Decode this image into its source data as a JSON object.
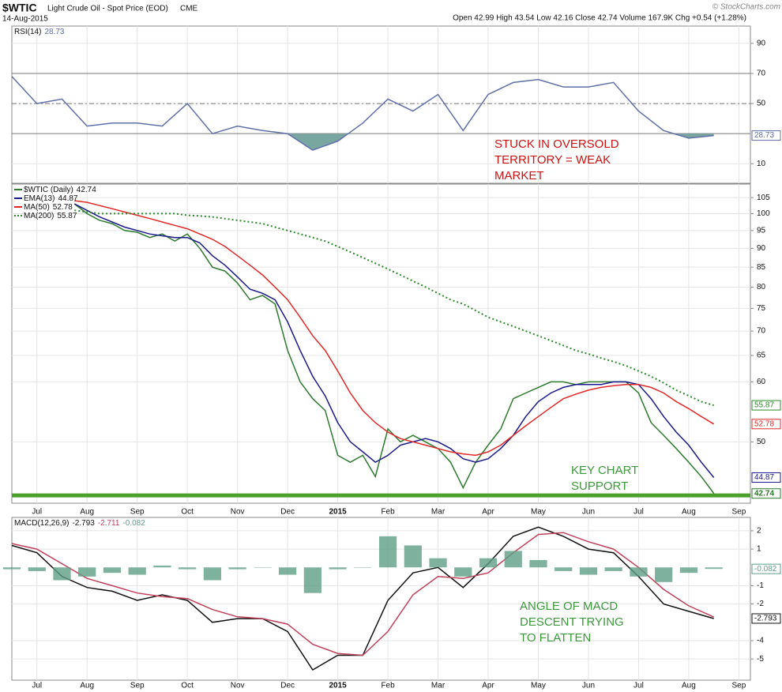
{
  "header": {
    "symbol": "$WTIC",
    "name": "Light Crude Oil - Spot Price (EOD)",
    "exchange": "CME",
    "date": "14-Aug-2015",
    "quote": "Open 42.99  High 43.54  Low 42.16  Close 42.74  Volume 167.9K  Chg +0.54 (+1.28%)",
    "source": "© StockCharts.com"
  },
  "chart_data": [
    {
      "type": "line",
      "label": "RSI(14)",
      "x": [
        -0.5,
        0,
        0.5,
        1,
        1.5,
        2,
        2.5,
        3,
        3.5,
        4,
        4.5,
        5,
        5.5,
        6,
        6.5,
        7,
        7.5,
        8,
        8.5,
        9,
        9.5,
        10,
        10.5,
        11,
        11.5,
        12,
        12.5,
        13,
        13.5
      ],
      "series": [
        {
          "color": "#5f6fa8",
          "badge": true,
          "fill_below": 30,
          "fill_color": "#7aa6a2",
          "values": [
            68,
            50,
            53,
            35,
            37,
            37,
            35,
            50,
            30,
            35,
            32,
            30,
            19,
            25,
            37,
            53,
            45,
            56,
            32,
            56,
            64,
            66,
            61,
            61,
            64,
            45,
            32,
            27,
            28.73
          ]
        }
      ],
      "ref_lines": [
        {
          "value": 70,
          "dash": false
        },
        {
          "value": 50,
          "dash": true
        },
        {
          "value": 30,
          "dash": false
        }
      ],
      "xlim": [
        -0.5,
        14.23
      ],
      "ylim": [
        -3,
        101.5
      ],
      "yticks": [
        10,
        50,
        70,
        90
      ],
      "annotation": [
        "STUCK IN OVERSOLD",
        "TERRITORY = WEAK",
        "MARKET"
      ],
      "annotation_color": "#cc1111"
    },
    {
      "type": "line",
      "log": true,
      "x": [
        0.75,
        1,
        1.25,
        1.5,
        1.75,
        2,
        2.25,
        2.5,
        2.75,
        3,
        3.25,
        3.5,
        3.75,
        4,
        4.25,
        4.5,
        4.75,
        5,
        5.25,
        5.5,
        5.75,
        6,
        6.25,
        6.5,
        6.75,
        7,
        7.25,
        7.5,
        7.75,
        8,
        8.25,
        8.5,
        8.75,
        9,
        9.25,
        9.5,
        9.75,
        10,
        10.25,
        10.5,
        10.75,
        11,
        11.25,
        11.5,
        11.75,
        12,
        12.25,
        12.5,
        12.75,
        13,
        13.25,
        13.5
      ],
      "series": [
        {
          "name": "$WTIC (Daily)",
          "color": "#2d7a2d",
          "badge": true,
          "values": [
            103,
            100,
            98,
            97,
            95,
            94.5,
            93,
            94,
            92,
            94,
            90,
            85,
            84,
            81,
            77,
            78,
            76,
            66,
            60,
            57,
            55,
            48,
            47,
            48,
            45,
            52,
            50,
            51,
            50,
            49,
            47,
            43.5,
            47,
            49.5,
            52,
            57,
            58,
            59,
            60,
            60,
            59.5,
            60,
            60,
            60,
            60,
            58,
            53,
            51,
            49,
            47,
            45,
            42.74
          ]
        },
        {
          "name": "EMA(13)",
          "color": "#1a1a8c",
          "badge": true,
          "values": [
            103,
            101,
            99,
            97.5,
            96,
            95,
            94,
            93.5,
            93,
            93,
            91.5,
            88,
            85.5,
            82.5,
            79.5,
            78.5,
            77,
            72,
            66,
            61,
            57.5,
            53,
            50,
            48.5,
            47,
            48,
            49.5,
            50,
            50.5,
            50,
            49,
            47.5,
            47,
            47.5,
            49,
            51,
            54,
            56.5,
            58,
            59,
            59.5,
            59.5,
            59.5,
            60,
            60,
            59.5,
            57,
            54,
            51.5,
            49.5,
            47,
            44.87
          ]
        },
        {
          "name": "MA(50)",
          "color": "#e02828",
          "badge": true,
          "values": [
            104,
            103.5,
            102.5,
            101.5,
            100.5,
            99.5,
            98.5,
            97.5,
            96.5,
            95.5,
            94,
            92.5,
            90.5,
            88,
            85.5,
            83,
            80,
            77,
            73,
            69,
            66,
            62,
            58,
            55,
            53,
            51.5,
            50.5,
            50,
            49.5,
            49,
            48.5,
            48.2,
            48,
            48.5,
            49.5,
            51,
            52.5,
            54,
            55.5,
            57,
            57.8,
            58.5,
            59,
            59.3,
            59.5,
            59.5,
            59,
            58,
            56.5,
            55.3,
            54,
            52.78
          ]
        },
        {
          "name": "MA(200)",
          "color": "#2a8a2a",
          "badge": true,
          "dotted": true,
          "values": [
            101,
            100.5,
            100,
            100,
            100,
            100,
            100,
            100,
            100,
            99.5,
            99.3,
            99,
            98.5,
            98,
            97.5,
            97,
            96,
            95,
            94,
            93,
            92,
            90.5,
            89,
            87.5,
            86,
            84.5,
            83,
            81.5,
            80,
            78.5,
            77,
            76,
            74.5,
            73,
            72,
            71,
            70,
            69,
            68,
            67,
            66,
            65.3,
            64.5,
            63.8,
            63,
            62,
            61,
            59.8,
            58.5,
            57.5,
            56.5,
            55.87
          ]
        }
      ],
      "hlines": [
        {
          "value": 42.5,
          "color": "#4aa02a"
        }
      ],
      "xlim": [
        -0.5,
        14.23
      ],
      "ylim": [
        41.5,
        109.4
      ],
      "yticks": [
        50,
        60,
        65,
        70,
        75,
        80,
        85,
        90,
        95,
        100,
        105
      ],
      "xticks": [
        {
          "value": 0,
          "label": "Jul"
        },
        {
          "value": 1,
          "label": "Aug"
        },
        {
          "value": 2,
          "label": "Sep"
        },
        {
          "value": 3,
          "label": "Oct"
        },
        {
          "value": 4,
          "label": "Nov"
        },
        {
          "value": 5,
          "label": "Dec"
        },
        {
          "value": 6,
          "label": "2015"
        },
        {
          "value": 7,
          "label": "Feb"
        },
        {
          "value": 8,
          "label": "Mar"
        },
        {
          "value": 9,
          "label": "Apr"
        },
        {
          "value": 10,
          "label": "May"
        },
        {
          "value": 11,
          "label": "Jun"
        },
        {
          "value": 12,
          "label": "Jul"
        },
        {
          "value": 13,
          "label": "Aug"
        },
        {
          "value": 14,
          "label": "Sep"
        }
      ],
      "annotation": [
        "KEY CHART",
        "SUPPORT"
      ],
      "annotation_color": "#3a9a3a"
    },
    {
      "type": "line",
      "label": "MACD(12,26,9)",
      "x": [
        -0.5,
        0,
        0.5,
        1,
        1.5,
        2,
        2.5,
        3,
        3.5,
        4,
        4.5,
        5,
        5.5,
        6,
        6.5,
        7,
        7.5,
        8,
        8.5,
        9,
        9.5,
        10,
        10.5,
        11,
        11.5,
        12,
        12.5,
        13,
        13.5
      ],
      "series": [
        {
          "color": "#111111",
          "badge": true,
          "values": [
            1.2,
            0.8,
            -0.5,
            -1.1,
            -1.3,
            -1.8,
            -1.5,
            -1.8,
            -3.0,
            -2.8,
            -2.8,
            -3.5,
            -5.6,
            -4.8,
            -4.8,
            -1.8,
            -0.3,
            0,
            -1.1,
            0.2,
            1.7,
            2.2,
            1.7,
            1.0,
            0.8,
            -0.5,
            -2.0,
            -2.4,
            -2.793
          ]
        },
        {
          "color": "#c0405a",
          "values": [
            1.3,
            1.0,
            0.2,
            -0.6,
            -1.0,
            -1.4,
            -1.6,
            -1.7,
            -2.3,
            -2.7,
            -2.8,
            -3.1,
            -4.2,
            -4.7,
            -4.8,
            -3.5,
            -1.5,
            -0.5,
            -0.6,
            -0.3,
            0.8,
            1.8,
            1.9,
            1.4,
            1.0,
            0,
            -1.2,
            -2.1,
            -2.711
          ]
        },
        {
          "color": "#5e9e86",
          "bars": true,
          "badge": true,
          "values": [
            -0.1,
            -0.2,
            -0.7,
            -0.5,
            -0.3,
            -0.4,
            0.1,
            -0.1,
            -0.7,
            -0.1,
            0,
            -0.4,
            -1.4,
            -0.1,
            0,
            1.7,
            1.2,
            0.5,
            -0.5,
            0.5,
            0.9,
            0.4,
            -0.2,
            -0.4,
            -0.2,
            -0.5,
            -0.8,
            -0.3,
            -0.082
          ]
        }
      ],
      "xlim": [
        -0.5,
        14.23
      ],
      "ylim": [
        -6.16,
        2.73
      ],
      "yticks": [
        -5,
        -4,
        -2,
        -1,
        1,
        2
      ],
      "xticks": [
        {
          "value": 0,
          "label": "Jul"
        },
        {
          "value": 1,
          "label": "Aug"
        },
        {
          "value": 2,
          "label": "Sep"
        },
        {
          "value": 3,
          "label": "Oct"
        },
        {
          "value": 4,
          "label": "Nov"
        },
        {
          "value": 5,
          "label": "Dec"
        },
        {
          "value": 6,
          "label": "2015"
        },
        {
          "value": 7,
          "label": "Feb"
        },
        {
          "value": 8,
          "label": "Mar"
        },
        {
          "value": 9,
          "label": "Apr"
        },
        {
          "value": 10,
          "label": "May"
        },
        {
          "value": 11,
          "label": "Jun"
        },
        {
          "value": 12,
          "label": "Jul"
        },
        {
          "value": 13,
          "label": "Aug"
        },
        {
          "value": 14,
          "label": "Sep"
        }
      ],
      "annotation": [
        "ANGLE OF MACD",
        "DESCENT TRYING",
        "TO FLATTEN"
      ],
      "annotation_color": "#3a9a3a"
    }
  ]
}
